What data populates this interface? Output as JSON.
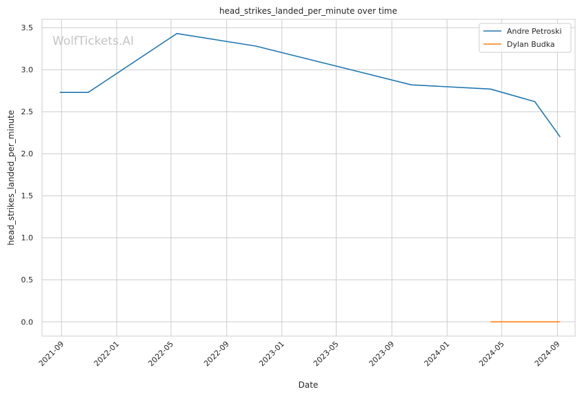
{
  "chart_data": {
    "type": "line",
    "title": "head_strikes_landed_per_minute over time",
    "xlabel": "Date",
    "ylabel": "head_strikes_landed_per_minute",
    "watermark": "WolfTickets.AI",
    "x_ticks": [
      "2021-09",
      "2022-01",
      "2022-05",
      "2022-09",
      "2023-01",
      "2023-05",
      "2023-09",
      "2024-01",
      "2024-05",
      "2024-09"
    ],
    "y_ticks": [
      "0.0",
      "0.5",
      "1.0",
      "1.5",
      "2.0",
      "2.5",
      "3.0",
      "3.5"
    ],
    "xlim": [
      "2021-07-20",
      "2024-10-10"
    ],
    "ylim": [
      -0.17,
      3.6
    ],
    "grid": true,
    "legend_position": "top-right",
    "series": [
      {
        "name": "Andre Petroski",
        "color": "#1f77b4",
        "points": [
          {
            "x": "2021-08-28",
            "y": 2.73
          },
          {
            "x": "2021-10-30",
            "y": 2.73
          },
          {
            "x": "2022-05-14",
            "y": 3.43
          },
          {
            "x": "2022-11-05",
            "y": 3.28
          },
          {
            "x": "2023-10-14",
            "y": 2.82
          },
          {
            "x": "2024-04-06",
            "y": 2.77
          },
          {
            "x": "2024-07-13",
            "y": 2.62
          },
          {
            "x": "2024-09-07",
            "y": 2.2
          }
        ]
      },
      {
        "name": "Dylan Budka",
        "color": "#ff7f0e",
        "points": [
          {
            "x": "2024-04-06",
            "y": 0.0
          },
          {
            "x": "2024-09-07",
            "y": 0.0
          }
        ]
      }
    ]
  }
}
